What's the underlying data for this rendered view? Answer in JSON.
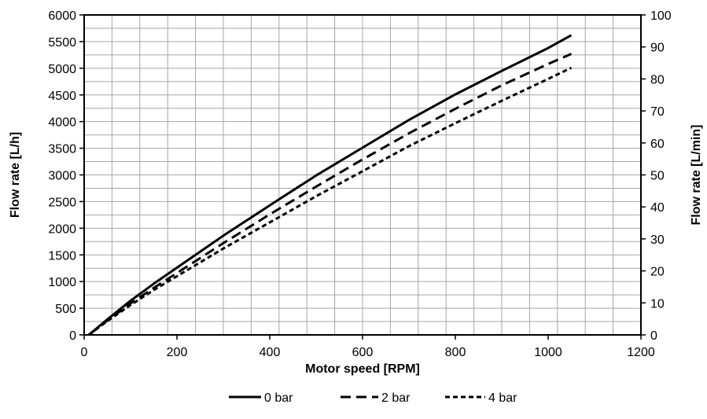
{
  "chart_data": {
    "type": "line",
    "xlabel": "Motor speed [RPM]",
    "ylabel": "Flow rate [L/h]",
    "y2label": "Flow rate [L/min]",
    "xlim": [
      0,
      1200
    ],
    "ylim": [
      0,
      6000
    ],
    "y2lim": [
      0,
      100
    ],
    "x_ticks": [
      0,
      200,
      400,
      600,
      800,
      1000,
      1200
    ],
    "y_ticks": [
      0,
      500,
      1000,
      1500,
      2000,
      2500,
      3000,
      3500,
      4000,
      4500,
      5000,
      5500,
      6000
    ],
    "y2_ticks": [
      0,
      10,
      20,
      30,
      40,
      50,
      60,
      70,
      80,
      90,
      100
    ],
    "grid": true,
    "legend_position": "bottom",
    "series": [
      {
        "name": "0 bar",
        "style": "solid",
        "x": [
          10,
          50,
          100,
          150,
          200,
          300,
          400,
          500,
          600,
          700,
          800,
          900,
          1000,
          1050
        ],
        "y": [
          0,
          290,
          640,
          960,
          1260,
          1860,
          2430,
          2990,
          3510,
          4030,
          4510,
          4950,
          5380,
          5620
        ]
      },
      {
        "name": "2 bar",
        "style": "dash",
        "x": [
          10,
          50,
          100,
          150,
          200,
          300,
          400,
          500,
          600,
          700,
          800,
          900,
          1000,
          1050
        ],
        "y": [
          0,
          270,
          590,
          880,
          1160,
          1720,
          2260,
          2780,
          3290,
          3780,
          4240,
          4680,
          5080,
          5270
        ]
      },
      {
        "name": "4 bar",
        "style": "short-dash",
        "x": [
          10,
          50,
          100,
          150,
          200,
          300,
          400,
          500,
          600,
          700,
          800,
          900,
          1000,
          1050
        ],
        "y": [
          0,
          260,
          560,
          840,
          1100,
          1620,
          2110,
          2600,
          3070,
          3540,
          3970,
          4390,
          4800,
          5010
        ]
      }
    ]
  }
}
